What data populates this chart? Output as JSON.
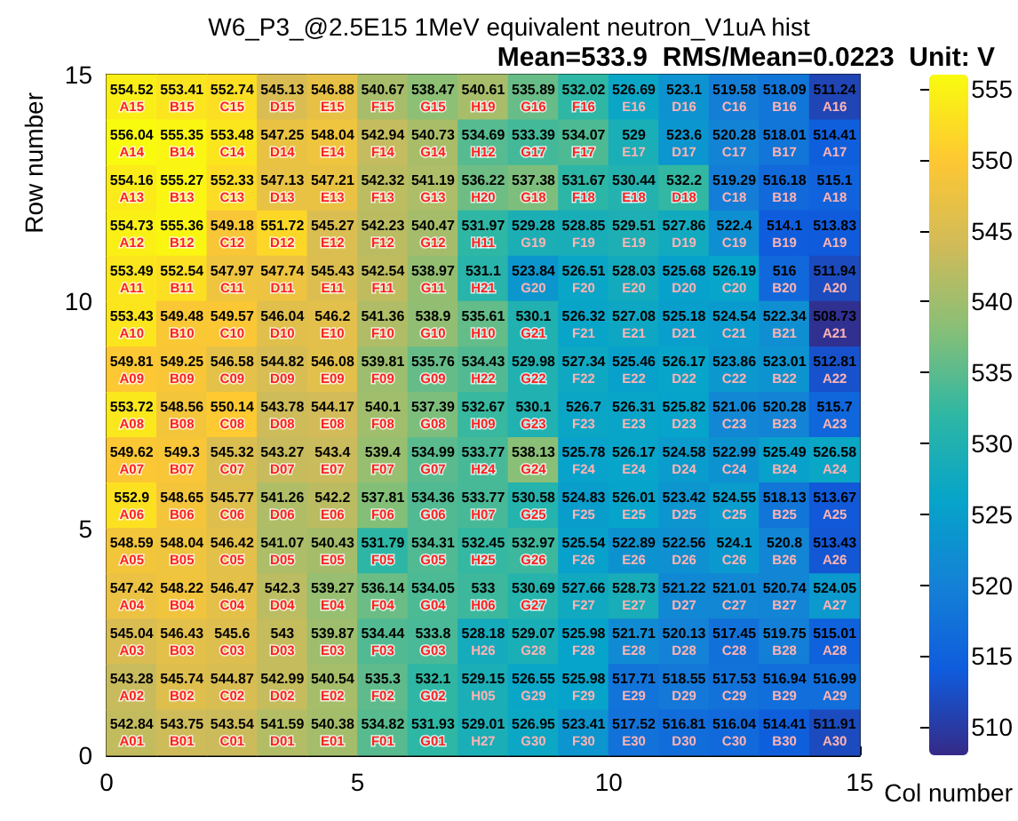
{
  "chart_data": {
    "type": "heatmap",
    "title": "W6_P3_@2.5E15 1MeV equivalent neutron_V1uA hist",
    "subtitle": "Mean=533.9  RMS/Mean=0.0223  Unit: V",
    "xlabel": "Col number",
    "ylabel": "Row number",
    "xlim": [
      0,
      15
    ],
    "xticks": [
      0,
      5,
      10,
      15
    ],
    "ylim": [
      0,
      15
    ],
    "yticks": [
      0,
      5,
      10,
      15
    ],
    "clim": [
      508,
      556
    ],
    "cticks": [
      510,
      515,
      520,
      525,
      530,
      535,
      540,
      545,
      550,
      555
    ],
    "cells": [
      [
        554.52,
        553.41,
        552.74,
        545.13,
        546.88,
        540.67,
        538.47,
        540.61,
        535.89,
        532.02,
        526.69,
        523.1,
        519.58,
        518.09,
        511.24
      ],
      [
        556.04,
        555.35,
        553.48,
        547.25,
        548.04,
        542.94,
        540.73,
        534.69,
        533.39,
        534.07,
        529,
        523.6,
        520.28,
        518.01,
        514.41
      ],
      [
        554.16,
        555.27,
        552.33,
        547.13,
        547.21,
        542.32,
        541.19,
        536.22,
        537.38,
        531.67,
        530.44,
        532.2,
        519.29,
        516.18,
        515.1
      ],
      [
        554.73,
        555.36,
        549.18,
        551.72,
        545.27,
        542.23,
        540.47,
        531.97,
        529.28,
        528.85,
        529.51,
        527.86,
        522.4,
        514.1,
        513.83
      ],
      [
        553.49,
        552.54,
        547.97,
        547.74,
        545.43,
        542.54,
        538.97,
        531.1,
        523.84,
        526.51,
        528.03,
        525.68,
        526.19,
        516,
        511.94
      ],
      [
        553.43,
        549.48,
        549.57,
        546.04,
        546.2,
        541.36,
        538.9,
        535.61,
        530.1,
        526.32,
        527.08,
        525.18,
        524.54,
        522.34,
        508.73
      ],
      [
        549.81,
        549.25,
        546.58,
        544.82,
        546.08,
        539.81,
        535.76,
        534.43,
        529.98,
        527.34,
        525.46,
        526.17,
        523.86,
        523.01,
        512.81
      ],
      [
        553.72,
        548.56,
        550.14,
        543.78,
        544.17,
        540.1,
        537.39,
        532.67,
        530.1,
        526.7,
        526.31,
        525.82,
        521.06,
        520.28,
        515.7
      ],
      [
        549.62,
        549.3,
        545.32,
        543.27,
        543.4,
        539.4,
        534.99,
        533.77,
        538.13,
        525.78,
        526.17,
        524.58,
        522.99,
        525.49,
        526.58
      ],
      [
        552.9,
        548.65,
        545.77,
        541.26,
        542.2,
        537.81,
        534.36,
        533.77,
        530.58,
        524.83,
        526.01,
        523.42,
        524.55,
        518.13,
        513.67
      ],
      [
        548.59,
        548.04,
        546.42,
        541.07,
        540.43,
        531.79,
        534.31,
        532.45,
        532.97,
        525.54,
        522.89,
        522.56,
        524.1,
        520.8,
        513.43
      ],
      [
        547.42,
        548.22,
        546.47,
        542.3,
        539.27,
        536.14,
        534.05,
        533,
        530.69,
        527.66,
        528.73,
        521.22,
        521.01,
        520.74,
        524.05
      ],
      [
        545.04,
        546.43,
        545.6,
        543,
        539.87,
        534.44,
        533.8,
        528.18,
        529.07,
        525.98,
        521.71,
        520.13,
        517.45,
        519.75,
        515.01
      ],
      [
        543.28,
        545.74,
        544.87,
        542.99,
        540.54,
        535.3,
        532.1,
        529.15,
        526.55,
        525.98,
        517.71,
        518.55,
        517.53,
        516.94,
        516.99
      ],
      [
        542.84,
        543.75,
        543.54,
        541.59,
        540.38,
        534.82,
        531.93,
        529.01,
        526.95,
        523.41,
        517.52,
        516.81,
        516.04,
        514.41,
        511.91
      ]
    ],
    "cell_labels": [
      [
        "554.52\nA15",
        "553.41\nB15",
        "552.74\nC15",
        "545.13\nD15",
        "546.88\nE15",
        "540.67\nF15",
        "538.47\nG15",
        "540.61\nH19",
        "535.89\nG16",
        "532.02\nF16",
        "526.69\nE16",
        "523.1\nD16",
        "519.58\nC16",
        "518.09\nB16",
        "511.24\nA16"
      ],
      [
        "556.04\nA14",
        "555.35\nB14",
        "553.48\nC14",
        "547.25\nD14",
        "548.04\nE14",
        "542.94\nF14",
        "540.73\nG14",
        "534.69\nH12",
        "533.39\nG17",
        "534.07\nF17",
        "529\nE17",
        "523.6\nD17",
        "520.28\nC17",
        "518.01\nB17",
        "514.41\nA17"
      ],
      [
        "554.16\nA13",
        "555.27\nB13",
        "552.33\nC13",
        "547.13\nD13",
        "547.21\nE13",
        "542.32\nF13",
        "541.19\nG13",
        "536.22\nH20",
        "537.38\nG18",
        "531.67\nF18",
        "530.44\nE18",
        "532.2\nD18",
        "519.29\nC18",
        "516.18\nB18",
        "515.1\nA18"
      ],
      [
        "554.73\nA12",
        "555.36\nB12",
        "549.18\nC12",
        "551.72\nD12",
        "545.27\nE12",
        "542.23\nF12",
        "540.47\nG12",
        "531.97\nH11",
        "529.28\nG19",
        "528.85\nF19",
        "529.51\nE19",
        "527.86\nD19",
        "522.4\nC19",
        "514.1\nB19",
        "513.83\nA19"
      ],
      [
        "553.49\nA11",
        "552.54\nB11",
        "547.97\nC11",
        "547.74\nD11",
        "545.43\nE11",
        "542.54\nF11",
        "538.97\nG11",
        "531.1\nH21",
        "523.84\nG20",
        "526.51\nF20",
        "528.03\nE20",
        "525.68\nD20",
        "526.19\nC20",
        "516\nB20",
        "511.94\nA20"
      ],
      [
        "553.43\nA10",
        "549.48\nB10",
        "549.57\nC10",
        "546.04\nD10",
        "546.2\nE10",
        "541.36\nF10",
        "538.9\nG10",
        "535.61\nH10",
        "530.1\nG21",
        "526.32\nF21",
        "527.08\nE21",
        "525.18\nD21",
        "524.54\nC21",
        "522.34\nB21",
        "508.73\nA21"
      ],
      [
        "549.81\nA09",
        "549.25\nB09",
        "546.58\nC09",
        "544.82\nD09",
        "546.08\nE09",
        "539.81\nF09",
        "535.76\nG09",
        "534.43\nH22",
        "529.98\nG22",
        "527.34\nF22",
        "525.46\nE22",
        "526.17\nD22",
        "523.86\nC22",
        "523.01\nB22",
        "512.81\nA22"
      ],
      [
        "553.72\nA08",
        "548.56\nB08",
        "550.14\nC08",
        "543.78\nD08",
        "544.17\nE08",
        "540.1\nF08",
        "537.39\nG08",
        "532.67\nH09",
        "530.1\nG23",
        "526.7\nF23",
        "526.31\nE23",
        "525.82\nD23",
        "521.06\nC23",
        "520.28\nB23",
        "515.7\nA23"
      ],
      [
        "549.62\nA07",
        "549.3\nB07",
        "545.32\nC07",
        "543.27\nD07",
        "543.4\nE07",
        "539.4\nF07",
        "534.99\nG07",
        "533.77\nH24",
        "538.13\nG24",
        "525.78\nF24",
        "526.17\nE24",
        "524.58\nD24",
        "522.99\nC24",
        "525.49\nB24",
        "526.58\nA24"
      ],
      [
        "552.9\nA06",
        "548.65\nB06",
        "545.77\nC06",
        "541.26\nD06",
        "542.2\nE06",
        "537.81\nF06",
        "534.36\nG06",
        "533.77\nH07",
        "530.58\nG25",
        "524.83\nF25",
        "526.01\nE25",
        "523.42\nD25",
        "524.55\nC25",
        "518.13\nB25",
        "513.67\nA25"
      ],
      [
        "548.59\nA05",
        "548.04\nB05",
        "546.42\nC05",
        "541.07\nD05",
        "540.43\nE05",
        "531.79\nF05",
        "534.31\nG05",
        "532.45\nH25",
        "532.97\nG26",
        "525.54\nF26",
        "522.89\nE26",
        "522.56\nD26",
        "524.1\nC26",
        "520.8\nB26",
        "513.43\nA26"
      ],
      [
        "547.42\nA04",
        "548.22\nB04",
        "546.47\nC04",
        "542.3\nD04",
        "539.27\nE04",
        "536.14\nF04",
        "534.05\nG04",
        "533\nH06",
        "530.69\nG27",
        "527.66\nF27",
        "528.73\nE27",
        "521.22\nD27",
        "521.01\nC27",
        "520.74\nB27",
        "524.05\nA27"
      ],
      [
        "545.04\nA03",
        "546.43\nB03",
        "545.6\nC03",
        "543\nD03",
        "539.87\nE03",
        "534.44\nF03",
        "533.8\nG03",
        "528.18\nH26",
        "529.07\nG28",
        "525.98\nF28",
        "521.71\nE28",
        "520.13\nD28",
        "517.45\nC28",
        "519.75\nB28",
        "515.01\nA28"
      ],
      [
        "543.28\nA02",
        "545.74\nB02",
        "544.87\nC02",
        "542.99\nD02",
        "540.54\nE02",
        "535.3\nF02",
        "532.1\nG02",
        "529.15\nH05",
        "526.55\nG29",
        "525.98\nF29",
        "517.71\nE29",
        "518.55\nD29",
        "517.53\nC29",
        "516.94\nB29",
        "516.99\nA29"
      ],
      [
        "542.84\nA01",
        "543.75\nB01",
        "543.54\nC01",
        "541.59\nD01",
        "540.38\nE01",
        "534.82\nF01",
        "531.93\nG01",
        "529.01\nH27",
        "526.95\nG30",
        "523.41\nF30",
        "517.52\nE30",
        "516.81\nD30",
        "516.04\nC30",
        "514.41\nB30",
        "511.91\nA30"
      ]
    ]
  }
}
